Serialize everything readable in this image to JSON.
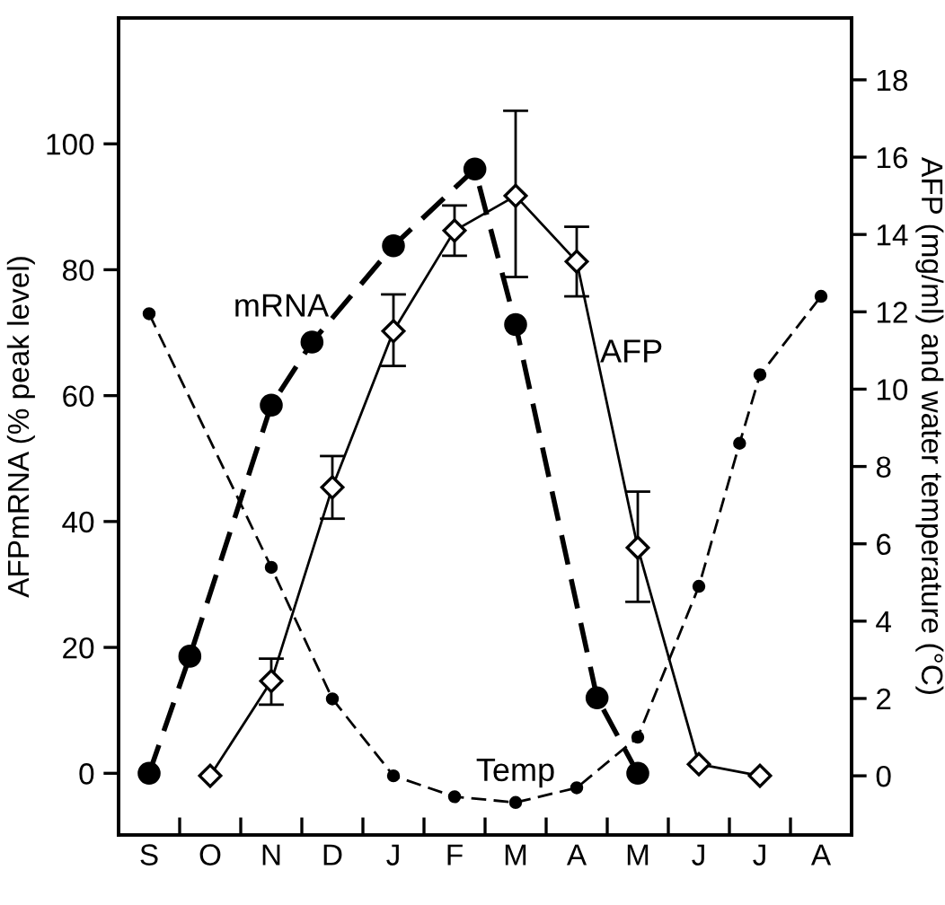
{
  "chart_data": {
    "type": "line",
    "ylabel": "AFPmRNA (% peak level)",
    "y2label": "AFP (mg/ml) and water temperature (°C)",
    "categories": [
      null,
      "S",
      null,
      null,
      "O",
      null,
      null,
      "N",
      null,
      null,
      "D",
      null,
      null,
      "J",
      null,
      null,
      "F",
      null,
      null,
      "M",
      null,
      null,
      "A",
      null,
      null,
      "M",
      null,
      null,
      "J",
      null,
      null,
      "J",
      null,
      null,
      "A",
      null
    ],
    "ylim": [
      -9.8,
      120
    ],
    "y2lim": [
      -1.53,
      19.6
    ],
    "yticks": [
      0,
      20,
      40,
      60,
      80,
      100
    ],
    "y2ticks": [
      0,
      2,
      4,
      6,
      8,
      10,
      12,
      14,
      16,
      18
    ],
    "grid": false,
    "legend": false,
    "series": [
      {
        "name": "mRNA",
        "color": "#000000",
        "marker": "circle",
        "line_style": "dashed",
        "values": [
          null,
          0,
          null,
          18.6,
          null,
          null,
          null,
          58.5,
          null,
          68.5,
          null,
          null,
          null,
          83.8,
          null,
          null,
          null,
          96,
          null,
          71.3,
          null,
          null,
          null,
          12,
          null,
          0,
          null,
          null,
          null,
          null,
          null,
          null,
          null,
          null,
          null,
          null
        ]
      },
      {
        "name": "AFP",
        "color": "#000000",
        "marker": "diamond",
        "line_style": "solid",
        "axis": "y2",
        "values": [
          null,
          null,
          null,
          null,
          0,
          null,
          null,
          2.45,
          null,
          null,
          7.46,
          null,
          null,
          11.5,
          null,
          null,
          14.1,
          null,
          null,
          15.0,
          null,
          null,
          13.3,
          null,
          null,
          5.9,
          null,
          null,
          0.3,
          null,
          null,
          0,
          null,
          null,
          null,
          null
        ],
        "errors": [
          null,
          null,
          null,
          null,
          null,
          null,
          null,
          [
            1.84,
            3.03
          ],
          null,
          null,
          [
            6.65,
            8.27
          ],
          null,
          null,
          [
            10.6,
            12.45
          ],
          null,
          null,
          [
            13.45,
            14.75
          ],
          null,
          null,
          [
            12.9,
            17.2
          ],
          null,
          null,
          [
            12.4,
            14.2
          ],
          null,
          null,
          [
            4.5,
            7.35
          ],
          null,
          null,
          null,
          null,
          null,
          null,
          null,
          null,
          null,
          null
        ]
      },
      {
        "name": "Temp",
        "color": "#000000",
        "marker": "circle",
        "line_style": "dashed",
        "axis": "y2",
        "values": [
          null,
          11.95,
          null,
          null,
          null,
          null,
          null,
          5.39,
          null,
          null,
          1.99,
          null,
          null,
          0,
          null,
          null,
          -0.54,
          null,
          null,
          -0.69,
          null,
          null,
          -0.31,
          null,
          null,
          1.0,
          null,
          null,
          4.9,
          null,
          8.6,
          10.37,
          null,
          null,
          12.4,
          null
        ]
      }
    ]
  }
}
